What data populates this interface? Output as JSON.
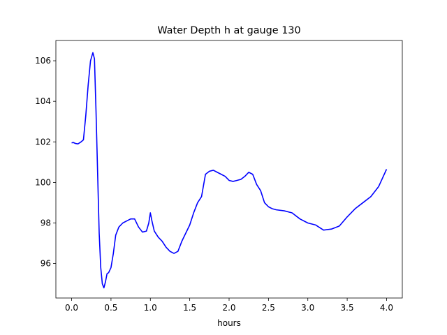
{
  "chart_data": {
    "type": "line",
    "title": "Water Depth h at gauge 130",
    "xlabel": "hours",
    "ylabel": "",
    "xlim": [
      -0.2,
      4.2
    ],
    "ylim": [
      94.3,
      107.0
    ],
    "xticks": [
      0.0,
      0.5,
      1.0,
      1.5,
      2.0,
      2.5,
      3.0,
      3.5,
      4.0
    ],
    "xtick_labels": [
      "0.0",
      "0.5",
      "1.0",
      "1.5",
      "2.0",
      "2.5",
      "3.0",
      "3.5",
      "4.0"
    ],
    "yticks": [
      96,
      98,
      100,
      102,
      104,
      106
    ],
    "ytick_labels": [
      "96",
      "98",
      "100",
      "102",
      "104",
      "106"
    ],
    "grid": false,
    "legend": "none",
    "series": [
      {
        "color": "#0000ff",
        "x": [
          0.0,
          0.02,
          0.05,
          0.08,
          0.12,
          0.15,
          0.18,
          0.21,
          0.24,
          0.27,
          0.29,
          0.31,
          0.33,
          0.35,
          0.37,
          0.39,
          0.41,
          0.43,
          0.45,
          0.47,
          0.5,
          0.53,
          0.56,
          0.6,
          0.65,
          0.7,
          0.75,
          0.8,
          0.85,
          0.9,
          0.95,
          0.98,
          1.0,
          1.02,
          1.05,
          1.1,
          1.15,
          1.2,
          1.25,
          1.3,
          1.35,
          1.4,
          1.45,
          1.5,
          1.55,
          1.6,
          1.65,
          1.7,
          1.75,
          1.8,
          1.85,
          1.9,
          1.95,
          2.0,
          2.05,
          2.1,
          2.15,
          2.2,
          2.25,
          2.3,
          2.35,
          2.4,
          2.45,
          2.5,
          2.55,
          2.6,
          2.7,
          2.8,
          2.9,
          3.0,
          3.1,
          3.2,
          3.3,
          3.4,
          3.5,
          3.6,
          3.7,
          3.8,
          3.9,
          4.0
        ],
        "y": [
          101.95,
          101.97,
          101.92,
          101.9,
          102.0,
          102.1,
          103.3,
          104.8,
          106.0,
          106.4,
          106.1,
          103.5,
          100.5,
          97.5,
          95.8,
          95.0,
          94.8,
          95.1,
          95.5,
          95.55,
          95.8,
          96.5,
          97.4,
          97.8,
          98.0,
          98.1,
          98.2,
          98.2,
          97.8,
          97.55,
          97.6,
          98.0,
          98.5,
          98.1,
          97.6,
          97.3,
          97.1,
          96.8,
          96.6,
          96.5,
          96.6,
          97.1,
          97.5,
          97.9,
          98.5,
          99.0,
          99.3,
          100.4,
          100.55,
          100.6,
          100.5,
          100.4,
          100.3,
          100.1,
          100.05,
          100.1,
          100.15,
          100.3,
          100.5,
          100.4,
          99.9,
          99.6,
          99.0,
          98.8,
          98.7,
          98.65,
          98.6,
          98.5,
          98.2,
          98.0,
          97.9,
          97.65,
          97.7,
          97.85,
          98.3,
          98.7,
          99.0,
          99.3,
          99.8,
          100.65
        ]
      }
    ]
  }
}
